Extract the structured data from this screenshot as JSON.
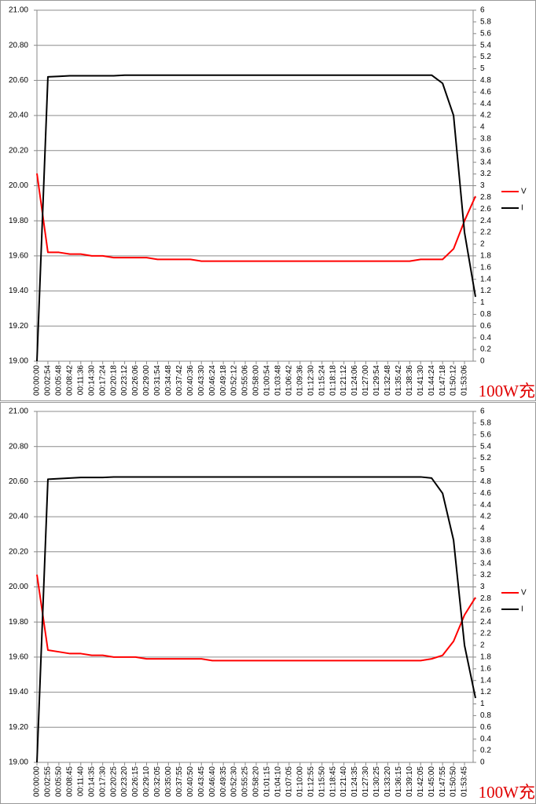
{
  "chart_data": [
    {
      "type": "line",
      "categories": [
        "00:00:00",
        "00:02:54",
        "00:05:48",
        "00:08:42",
        "00:11:36",
        "00:14:30",
        "00:17:24",
        "00:20:18",
        "00:23:12",
        "00:26:06",
        "00:29:00",
        "00:31:54",
        "00:34:48",
        "00:37:42",
        "00:40:36",
        "00:43:30",
        "00:46:24",
        "00:49:18",
        "00:52:12",
        "00:55:06",
        "00:58:00",
        "01:00:54",
        "01:03:48",
        "01:06:42",
        "01:09:36",
        "01:12:30",
        "01:15:24",
        "01:18:18",
        "01:21:12",
        "01:24:06",
        "01:27:00",
        "01:29:54",
        "01:32:48",
        "01:35:42",
        "01:38:36",
        "01:41:30",
        "01:44:24",
        "01:47:18",
        "01:50:12",
        "01:53:06",
        null
      ],
      "series": [
        {
          "name": "V",
          "color": "#ff0000",
          "values": [
            20.07,
            19.62,
            19.62,
            19.61,
            19.61,
            19.6,
            19.6,
            19.59,
            19.59,
            19.59,
            19.59,
            19.58,
            19.58,
            19.58,
            19.58,
            19.57,
            19.57,
            19.57,
            19.57,
            19.57,
            19.57,
            19.57,
            19.57,
            19.57,
            19.57,
            19.57,
            19.57,
            19.57,
            19.57,
            19.57,
            19.57,
            19.57,
            19.57,
            19.57,
            19.57,
            19.58,
            19.58,
            19.58,
            19.64,
            19.8,
            19.94
          ]
        },
        {
          "name": "I",
          "color": "#000000",
          "axis": "y2",
          "values": [
            0,
            4.86,
            4.87,
            4.88,
            4.88,
            4.88,
            4.88,
            4.88,
            4.89,
            4.89,
            4.89,
            4.89,
            4.89,
            4.89,
            4.89,
            4.89,
            4.89,
            4.89,
            4.89,
            4.89,
            4.89,
            4.89,
            4.89,
            4.89,
            4.89,
            4.89,
            4.89,
            4.89,
            4.89,
            4.89,
            4.89,
            4.89,
            4.89,
            4.89,
            4.89,
            4.89,
            4.89,
            4.75,
            4.2,
            2.2,
            1.1
          ]
        }
      ],
      "ylim": [
        19,
        21
      ],
      "yticks": [
        {
          "value": 19,
          "label": "19.00"
        },
        {
          "value": 19.2,
          "label": "19.20"
        },
        {
          "value": 19.4,
          "label": "19.40"
        },
        {
          "value": 19.6,
          "label": "19.60"
        },
        {
          "value": 19.8,
          "label": "19.80"
        },
        {
          "value": 20,
          "label": "20.00"
        },
        {
          "value": 20.2,
          "label": "20.20"
        },
        {
          "value": 20.4,
          "label": "20.40"
        },
        {
          "value": 20.6,
          "label": "20.60"
        },
        {
          "value": 20.8,
          "label": "20.80"
        },
        {
          "value": 21,
          "label": "21.00"
        }
      ],
      "y2lim": [
        0,
        6
      ],
      "y2ticks": [
        0,
        0.2,
        0.4,
        0.6,
        0.8,
        1,
        1.2,
        1.4,
        1.6,
        1.8,
        2,
        2.2,
        2.4,
        2.6,
        2.8,
        3,
        3.2,
        3.4,
        3.6,
        3.8,
        4,
        4.2,
        4.4,
        4.6,
        4.8,
        5,
        5.2,
        5.4,
        5.6,
        5.8,
        6
      ],
      "grid": true,
      "legend": "right",
      "annotation": "100W充"
    },
    {
      "type": "line",
      "categories": [
        "00:00:00",
        "00:02:55",
        "00:05:50",
        "00:08:45",
        "00:11:40",
        "00:14:35",
        "00:17:30",
        "00:20:25",
        "00:23:20",
        "00:26:15",
        "00:29:10",
        "00:32:05",
        "00:35:00",
        "00:37:55",
        "00:40:50",
        "00:43:45",
        "00:46:40",
        "00:49:35",
        "00:52:30",
        "00:55:25",
        "00:58:20",
        "01:01:15",
        "01:04:10",
        "01:07:05",
        "01:10:00",
        "01:12:55",
        "01:15:50",
        "01:18:45",
        "01:21:40",
        "01:24:35",
        "01:27:30",
        "01:30:25",
        "01:33:20",
        "01:36:15",
        "01:39:10",
        "01:42:05",
        "01:45:00",
        "01:47:55",
        "01:50:50",
        "01:53:45",
        null
      ],
      "series": [
        {
          "name": "V",
          "color": "#ff0000",
          "values": [
            20.07,
            19.64,
            19.63,
            19.62,
            19.62,
            19.61,
            19.61,
            19.6,
            19.6,
            19.6,
            19.59,
            19.59,
            19.59,
            19.59,
            19.59,
            19.59,
            19.58,
            19.58,
            19.58,
            19.58,
            19.58,
            19.58,
            19.58,
            19.58,
            19.58,
            19.58,
            19.58,
            19.58,
            19.58,
            19.58,
            19.58,
            19.58,
            19.58,
            19.58,
            19.58,
            19.58,
            19.59,
            19.61,
            19.69,
            19.84,
            19.94
          ]
        },
        {
          "name": "I",
          "color": "#000000",
          "axis": "y2",
          "values": [
            0,
            4.84,
            4.85,
            4.86,
            4.87,
            4.87,
            4.87,
            4.88,
            4.88,
            4.88,
            4.88,
            4.88,
            4.88,
            4.88,
            4.88,
            4.88,
            4.88,
            4.88,
            4.88,
            4.88,
            4.88,
            4.88,
            4.88,
            4.88,
            4.88,
            4.88,
            4.88,
            4.88,
            4.88,
            4.88,
            4.88,
            4.88,
            4.88,
            4.88,
            4.88,
            4.88,
            4.86,
            4.6,
            3.8,
            2.0,
            1.1
          ]
        }
      ],
      "ylim": [
        19,
        21
      ],
      "yticks": [
        {
          "value": 19,
          "label": "19.00"
        },
        {
          "value": 19.2,
          "label": "19.20"
        },
        {
          "value": 19.4,
          "label": "19.40"
        },
        {
          "value": 19.6,
          "label": "19.60"
        },
        {
          "value": 19.8,
          "label": "19.80"
        },
        {
          "value": 20,
          "label": "20.00"
        },
        {
          "value": 20.2,
          "label": "20.20"
        },
        {
          "value": 20.4,
          "label": "20.40"
        },
        {
          "value": 20.6,
          "label": "20.60"
        },
        {
          "value": 20.8,
          "label": "20.80"
        },
        {
          "value": 21,
          "label": "21.00"
        }
      ],
      "y2lim": [
        0,
        6
      ],
      "y2ticks": [
        0,
        0.2,
        0.4,
        0.6,
        0.8,
        1,
        1.2,
        1.4,
        1.6,
        1.8,
        2,
        2.2,
        2.4,
        2.6,
        2.8,
        3,
        3.2,
        3.4,
        3.6,
        3.8,
        4,
        4.2,
        4.4,
        4.6,
        4.8,
        5,
        5.2,
        5.4,
        5.6,
        5.8,
        6
      ],
      "grid": true,
      "legend": "right",
      "annotation": "100W充"
    }
  ]
}
